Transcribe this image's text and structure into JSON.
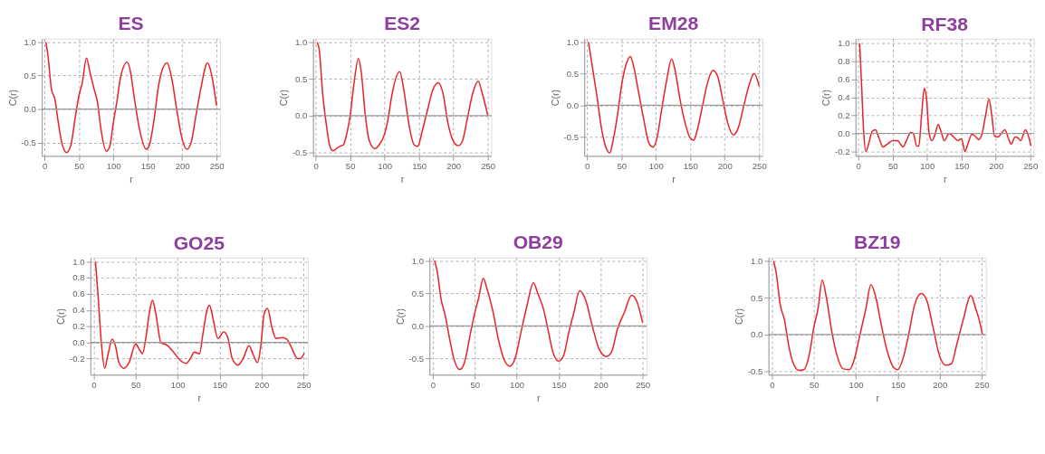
{
  "chart_data": [
    {
      "type": "line",
      "title": "ES",
      "xlabel": "r",
      "ylabel": "C(r)",
      "grid": true,
      "x": [
        2,
        5,
        10,
        15,
        20,
        25,
        32,
        38,
        45,
        50,
        55,
        61,
        66,
        72,
        77,
        82,
        90,
        95,
        100,
        105,
        110,
        120,
        125,
        130,
        138,
        148,
        152,
        160,
        165,
        170,
        178,
        185,
        192,
        200,
        207,
        213,
        220,
        227,
        237,
        242,
        250
      ],
      "series": [
        {
          "color": "#e8262a",
          "values": [
            1.0,
            0.8,
            0.3,
            0.15,
            -0.2,
            -0.5,
            -0.65,
            -0.55,
            -0.1,
            0.2,
            0.4,
            0.76,
            0.55,
            0.3,
            0.1,
            -0.3,
            -0.63,
            -0.55,
            -0.2,
            0.1,
            0.45,
            0.7,
            0.55,
            0.2,
            -0.3,
            -0.6,
            -0.55,
            -0.1,
            0.3,
            0.55,
            0.69,
            0.45,
            0.0,
            -0.45,
            -0.6,
            -0.5,
            -0.1,
            0.3,
            0.69,
            0.55,
            0.05
          ]
        }
      ],
      "xlim": [
        -4,
        255
      ],
      "xticks": [
        0,
        50,
        100,
        150,
        200,
        250
      ],
      "ylim": [
        -0.7,
        1.05
      ],
      "yticks": [
        {
          "value": -0.5,
          "label": "-0.5"
        },
        {
          "value": 0,
          "label": "0.0"
        },
        {
          "value": 0.5,
          "label": "0.5"
        },
        {
          "value": 1,
          "label": "1.0"
        }
      ],
      "ref_lines": [
        {
          "axis": "y",
          "value": 0,
          "color": "#999999"
        }
      ]
    },
    {
      "type": "line",
      "title": "ES2",
      "xlabel": "r",
      "ylabel": "C(r)",
      "grid": true,
      "x": [
        2,
        5,
        10,
        15,
        20,
        25,
        30,
        35,
        40,
        45,
        50,
        55,
        62,
        66,
        72,
        78,
        86,
        92,
        100,
        105,
        110,
        122,
        128,
        135,
        143,
        148,
        155,
        163,
        170,
        178,
        185,
        192,
        200,
        207,
        213,
        220,
        228,
        236,
        242,
        250
      ],
      "series": [
        {
          "color": "#e8262a",
          "values": [
            1.0,
            0.9,
            0.3,
            -0.1,
            -0.4,
            -0.48,
            -0.45,
            -0.42,
            -0.4,
            -0.25,
            0.0,
            0.4,
            0.78,
            0.6,
            0.0,
            -0.35,
            -0.45,
            -0.4,
            -0.25,
            -0.05,
            0.25,
            0.6,
            0.35,
            -0.1,
            -0.4,
            -0.42,
            -0.2,
            0.1,
            0.35,
            0.45,
            0.3,
            -0.1,
            -0.35,
            -0.41,
            -0.35,
            -0.05,
            0.3,
            0.47,
            0.3,
            0.0
          ]
        }
      ],
      "xlim": [
        -4,
        255
      ],
      "xticks": [
        0,
        50,
        100,
        150,
        200,
        250
      ],
      "ylim": [
        -0.55,
        1.05
      ],
      "yticks": [
        {
          "value": -0.5,
          "label": "-0.5"
        },
        {
          "value": 0,
          "label": "0.0"
        },
        {
          "value": 0.5,
          "label": "0.5"
        },
        {
          "value": 1,
          "label": "1.0"
        }
      ],
      "ref_lines": [
        {
          "axis": "y",
          "value": 0,
          "color": "#999999"
        }
      ]
    },
    {
      "type": "line",
      "title": "EM28",
      "xlabel": "r",
      "ylabel": "C(r)",
      "grid": true,
      "x": [
        2,
        5,
        10,
        15,
        20,
        27,
        33,
        38,
        45,
        50,
        57,
        63,
        68,
        75,
        82,
        90,
        96,
        102,
        108,
        115,
        123,
        128,
        135,
        143,
        150,
        155,
        160,
        168,
        175,
        183,
        190,
        197,
        205,
        213,
        220,
        228,
        235,
        243,
        250
      ],
      "series": [
        {
          "color": "#e8262a",
          "values": [
            1.0,
            0.8,
            0.45,
            0.1,
            -0.3,
            -0.65,
            -0.75,
            -0.55,
            -0.1,
            0.3,
            0.65,
            0.77,
            0.6,
            0.2,
            -0.2,
            -0.6,
            -0.66,
            -0.5,
            -0.1,
            0.35,
            0.73,
            0.55,
            0.1,
            -0.3,
            -0.52,
            -0.55,
            -0.4,
            0.0,
            0.35,
            0.55,
            0.45,
            0.1,
            -0.3,
            -0.47,
            -0.35,
            0.0,
            0.3,
            0.5,
            0.3
          ]
        }
      ],
      "xlim": [
        -4,
        255
      ],
      "xticks": [
        0,
        50,
        100,
        150,
        200,
        250
      ],
      "ylim": [
        -0.8,
        1.05
      ],
      "yticks": [
        {
          "value": -0.5,
          "label": "-0.5"
        },
        {
          "value": 0,
          "label": "0.0"
        },
        {
          "value": 0.5,
          "label": "0.5"
        },
        {
          "value": 1,
          "label": "1.0"
        }
      ],
      "ref_lines": [
        {
          "axis": "y",
          "value": 0,
          "color": "#999999"
        }
      ]
    },
    {
      "type": "line",
      "title": "RF38",
      "xlabel": "r",
      "ylabel": "C(r)",
      "grid": true,
      "x": [
        2,
        5,
        8,
        11,
        15,
        20,
        25,
        30,
        36,
        42,
        50,
        57,
        65,
        70,
        76,
        80,
        85,
        88,
        92,
        96,
        99,
        103,
        107,
        112,
        116,
        120,
        125,
        132,
        140,
        145,
        150,
        155,
        160,
        165,
        170,
        175,
        180,
        185,
        190,
        194,
        198,
        203,
        208,
        213,
        218,
        222,
        228,
        232,
        236,
        243,
        246,
        251
      ],
      "series": [
        {
          "color": "#e8262a",
          "values": [
            1.0,
            0.5,
            0.0,
            -0.2,
            -0.12,
            0.02,
            0.04,
            -0.05,
            -0.15,
            -0.12,
            -0.08,
            -0.08,
            -0.15,
            -0.08,
            0.01,
            0.0,
            -0.14,
            -0.14,
            0.2,
            0.5,
            0.4,
            0.0,
            -0.08,
            0.0,
            0.1,
            0.03,
            -0.08,
            0.0,
            -0.05,
            -0.08,
            -0.06,
            -0.2,
            -0.1,
            -0.01,
            -0.03,
            -0.07,
            0.0,
            0.2,
            0.38,
            0.2,
            -0.03,
            -0.04,
            0.0,
            0.04,
            -0.05,
            -0.12,
            -0.04,
            -0.05,
            -0.08,
            0.04,
            0.0,
            -0.14
          ]
        }
      ],
      "xlim": [
        -4,
        255
      ],
      "xticks": [
        0,
        50,
        100,
        150,
        200,
        250
      ],
      "ylim": [
        -0.25,
        1.05
      ],
      "yticks": [
        {
          "value": -0.2,
          "label": "-0.2"
        },
        {
          "value": 0,
          "label": "0.0"
        },
        {
          "value": 0.2,
          "label": "0.2"
        },
        {
          "value": 0.4,
          "label": "0.4"
        },
        {
          "value": 0.6,
          "label": "0.6"
        },
        {
          "value": 0.8,
          "label": "0.8"
        },
        {
          "value": 1,
          "label": "1.0"
        }
      ],
      "ref_lines": [
        {
          "axis": "y",
          "value": 0,
          "color": "#999999"
        }
      ]
    },
    {
      "type": "line",
      "title": "GO25",
      "xlabel": "r",
      "ylabel": "C(r)",
      "grid": true,
      "x": [
        2,
        5,
        9,
        13,
        17,
        22,
        26,
        30,
        36,
        42,
        50,
        55,
        58,
        62,
        66,
        70,
        74,
        80,
        88,
        95,
        103,
        110,
        115,
        120,
        126,
        130,
        135,
        138,
        142,
        148,
        155,
        160,
        165,
        172,
        178,
        185,
        190,
        195,
        199,
        203,
        207,
        212,
        217,
        225,
        230,
        235,
        243,
        246,
        251
      ],
      "series": [
        {
          "color": "#e8262a",
          "values": [
            1.0,
            0.6,
            0.0,
            -0.32,
            -0.15,
            0.04,
            -0.05,
            -0.25,
            -0.32,
            -0.25,
            -0.02,
            -0.1,
            -0.14,
            0.05,
            0.35,
            0.52,
            0.35,
            0.0,
            -0.04,
            -0.12,
            -0.22,
            -0.26,
            -0.2,
            -0.12,
            -0.14,
            0.1,
            0.4,
            0.46,
            0.3,
            0.05,
            0.13,
            0.05,
            -0.2,
            -0.28,
            -0.2,
            -0.04,
            -0.15,
            -0.25,
            -0.05,
            0.35,
            0.42,
            0.2,
            0.05,
            0.06,
            0.04,
            -0.05,
            -0.2,
            -0.2,
            -0.13
          ]
        }
      ],
      "xlim": [
        -4,
        255
      ],
      "xticks": [
        0,
        50,
        100,
        150,
        200,
        250
      ],
      "ylim": [
        -0.4,
        1.05
      ],
      "yticks": [
        {
          "value": -0.2,
          "label": "-0.2"
        },
        {
          "value": 0,
          "label": "0.0"
        },
        {
          "value": 0.2,
          "label": "0.2"
        },
        {
          "value": 0.4,
          "label": "0.4"
        },
        {
          "value": 0.6,
          "label": "0.6"
        },
        {
          "value": 0.8,
          "label": "0.8"
        },
        {
          "value": 1,
          "label": "1.0"
        }
      ],
      "ref_lines": [
        {
          "axis": "y",
          "value": 0,
          "color": "#999999"
        }
      ]
    },
    {
      "type": "line",
      "title": "OB29",
      "xlabel": "r",
      "ylabel": "C(r)",
      "grid": true,
      "x": [
        2,
        5,
        10,
        15,
        20,
        25,
        32,
        38,
        45,
        50,
        55,
        60,
        65,
        72,
        78,
        85,
        92,
        98,
        105,
        112,
        120,
        125,
        132,
        138,
        143,
        150,
        156,
        162,
        168,
        175,
        182,
        190,
        198,
        207,
        213,
        220,
        228,
        237,
        243,
        250
      ],
      "series": [
        {
          "color": "#e8262a",
          "values": [
            1.0,
            0.85,
            0.4,
            0.15,
            -0.2,
            -0.5,
            -0.67,
            -0.55,
            -0.1,
            0.2,
            0.45,
            0.73,
            0.55,
            0.2,
            -0.2,
            -0.52,
            -0.62,
            -0.5,
            -0.1,
            0.3,
            0.66,
            0.5,
            0.25,
            -0.1,
            -0.4,
            -0.54,
            -0.45,
            -0.1,
            0.2,
            0.54,
            0.4,
            0.0,
            -0.35,
            -0.47,
            -0.4,
            -0.05,
            0.2,
            0.47,
            0.38,
            0.05
          ]
        }
      ],
      "xlim": [
        -4,
        255
      ],
      "xticks": [
        0,
        50,
        100,
        150,
        200,
        250
      ],
      "ylim": [
        -0.75,
        1.05
      ],
      "yticks": [
        {
          "value": -0.5,
          "label": "-0.5"
        },
        {
          "value": 0,
          "label": "0.0"
        },
        {
          "value": 0.5,
          "label": "0.5"
        },
        {
          "value": 1,
          "label": "1.0"
        }
      ],
      "ref_lines": [
        {
          "axis": "y",
          "value": 0,
          "color": "#999999"
        }
      ]
    },
    {
      "type": "line",
      "title": "BZ19",
      "xlabel": "r",
      "ylabel": "C(r)",
      "grid": true,
      "x": [
        2,
        5,
        10,
        15,
        20,
        25,
        32,
        38,
        45,
        50,
        55,
        60,
        65,
        72,
        78,
        85,
        92,
        98,
        105,
        112,
        118,
        124,
        130,
        138,
        145,
        150,
        157,
        163,
        170,
        178,
        185,
        192,
        200,
        207,
        214,
        220,
        228,
        237,
        243,
        247,
        251
      ],
      "series": [
        {
          "color": "#e8262a",
          "values": [
            1.0,
            0.85,
            0.4,
            0.2,
            -0.15,
            -0.38,
            -0.49,
            -0.48,
            -0.25,
            0.1,
            0.35,
            0.74,
            0.5,
            0.0,
            -0.3,
            -0.47,
            -0.48,
            -0.35,
            0.0,
            0.35,
            0.68,
            0.5,
            0.15,
            -0.25,
            -0.45,
            -0.48,
            -0.3,
            0.0,
            0.4,
            0.56,
            0.45,
            0.1,
            -0.3,
            -0.42,
            -0.4,
            -0.15,
            0.2,
            0.53,
            0.35,
            0.2,
            0.0
          ]
        }
      ],
      "xlim": [
        -4,
        255
      ],
      "xticks": [
        0,
        50,
        100,
        150,
        200,
        250
      ],
      "ylim": [
        -0.55,
        1.05
      ],
      "yticks": [
        {
          "value": -0.5,
          "label": "-0.5"
        },
        {
          "value": 0,
          "label": "0.0"
        },
        {
          "value": 0.5,
          "label": "0.5"
        },
        {
          "value": 1,
          "label": "1.0"
        }
      ],
      "ref_lines": [
        {
          "axis": "y",
          "value": 0,
          "color": "#999999"
        }
      ]
    }
  ]
}
